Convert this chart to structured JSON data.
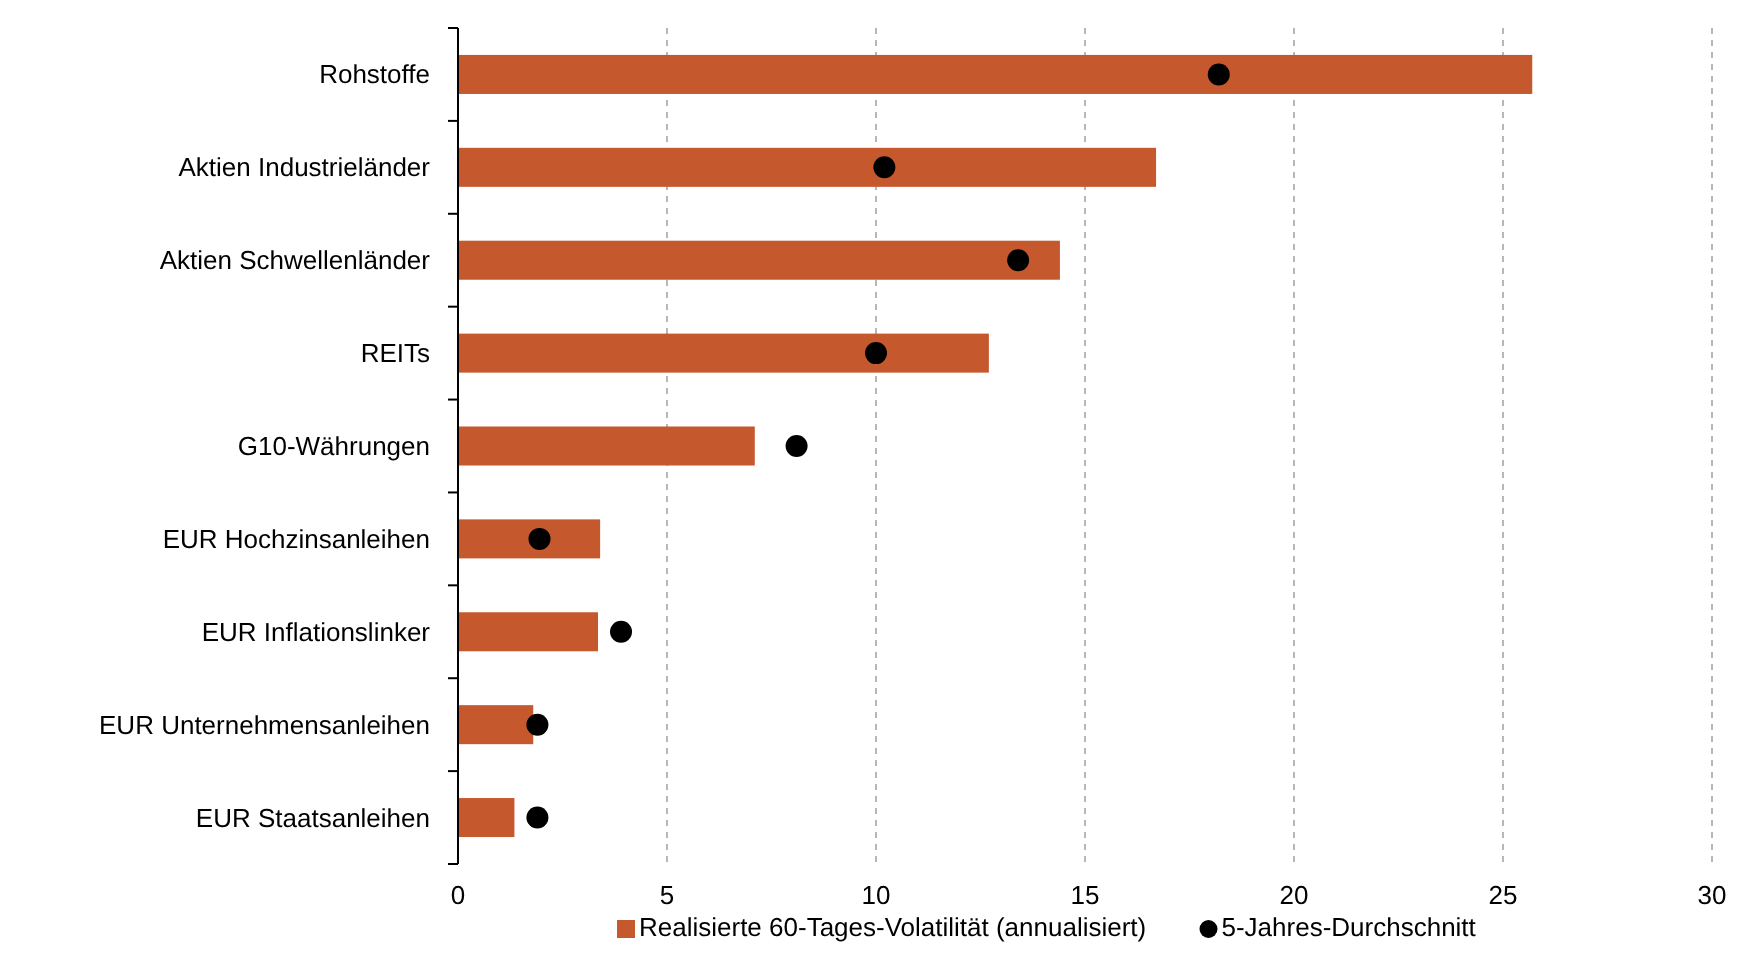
{
  "chart_data": {
    "type": "bar",
    "orientation": "horizontal",
    "categories": [
      "Rohstoffe",
      "Aktien Industrieländer",
      "Aktien Schwellenländer",
      "REITs",
      "G10-Währungen",
      "EUR Hochzinsanleihen",
      "EUR Inflationslinker",
      "EUR Unternehmensanleihen",
      "EUR Staatsanleihen"
    ],
    "series": [
      {
        "name": "Realisierte 60-Tages-Volatilität (annualisiert)",
        "color": "#c5582d",
        "values": [
          25.7,
          16.7,
          14.4,
          12.7,
          7.1,
          3.4,
          3.35,
          1.8,
          1.35
        ]
      },
      {
        "name": "5-Jahres-Durchschnitt",
        "type": "scatter",
        "color": "#000000",
        "marker": "circle",
        "values": [
          18.2,
          10.2,
          13.4,
          10.0,
          8.1,
          1.95,
          3.9,
          1.9,
          1.9
        ]
      }
    ],
    "xlim": [
      0,
      30
    ],
    "xticks": [
      0,
      5,
      10,
      15,
      20,
      25,
      30
    ],
    "grid": "x",
    "legend": "bottom"
  }
}
